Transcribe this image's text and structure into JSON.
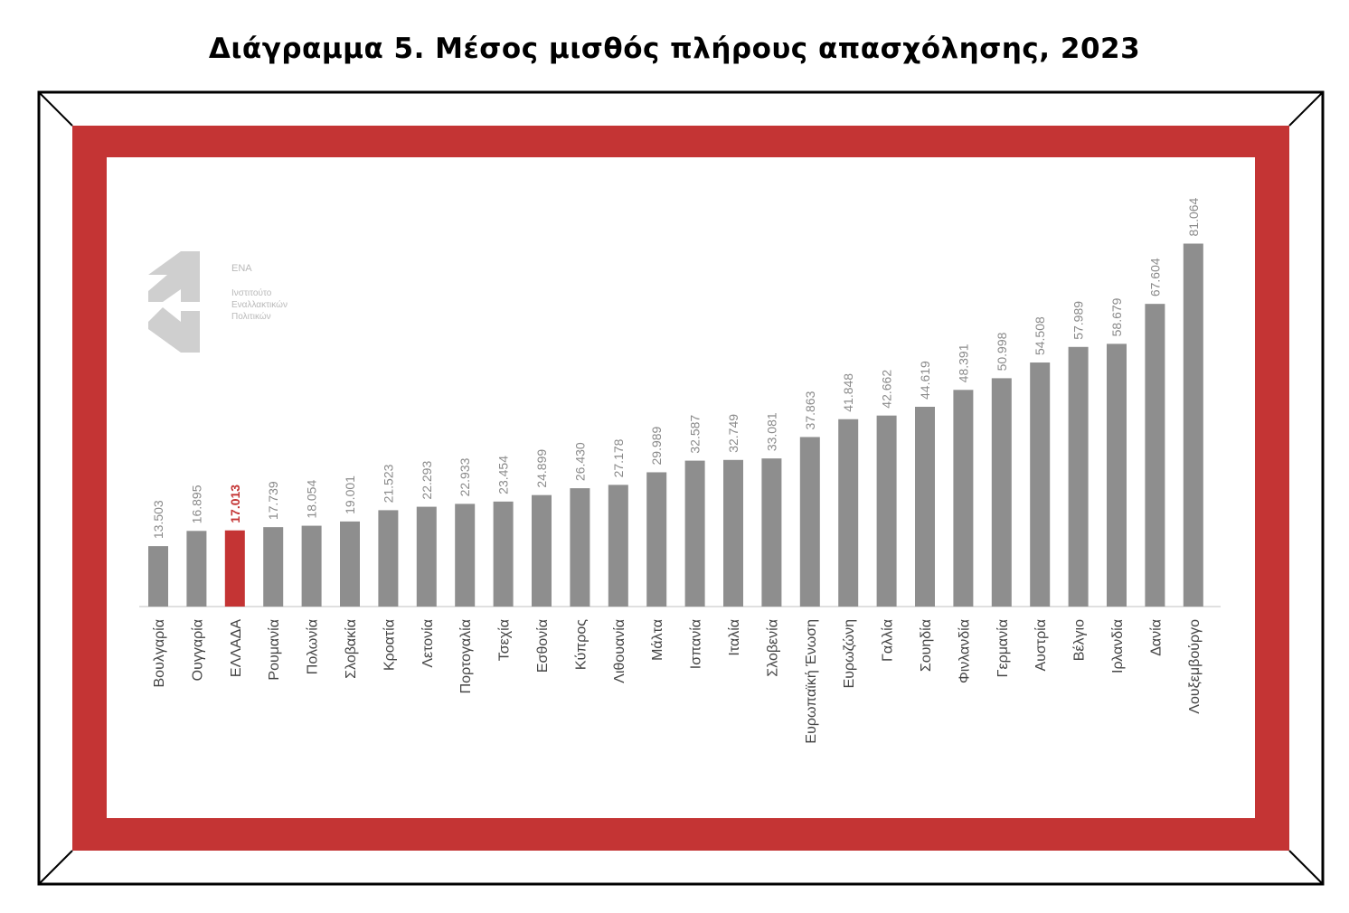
{
  "title": "Διάγραμμα 5. Μέσος μισθός πλήρους απασχόλησης, 2023",
  "logo": {
    "name": "ΕΝΑ",
    "line1": "Ινστιτούτο",
    "line2": "Εναλλακτικών",
    "line3": "Πολιτικών"
  },
  "colors": {
    "frame_red": "#c43434",
    "bar_gray": "#8e8e8e",
    "highlight_red": "#c43434",
    "label_gray": "#8a8a8a",
    "category_text": "#444444"
  },
  "chart_data": {
    "type": "bar",
    "categories": [
      "Βουλγαρία",
      "Ουγγαρία",
      "ΕΛΛΑΔΑ",
      "Ρουμανία",
      "Πολωνία",
      "Σλοβακία",
      "Κροατία",
      "Λετονία",
      "Πορτογαλία",
      "Τσεχία",
      "Εσθονία",
      "Κύπρος",
      "Λιθουανία",
      "Μάλτα",
      "Ισπανία",
      "Ιταλία",
      "Σλοβενία",
      "Ευρωπαϊκή Ένωση",
      "Ευρωζώνη",
      "Γαλλία",
      "Σουηδία",
      "Φινλανδία",
      "Γερμανία",
      "Αυστρία",
      "Βέλγιο",
      "Ιρλανδία",
      "Δανία",
      "Λουξεμβούργο"
    ],
    "values": [
      13503,
      16895,
      17013,
      17739,
      18054,
      19001,
      21523,
      22293,
      22933,
      23454,
      24899,
      26430,
      27178,
      29989,
      32587,
      32749,
      33081,
      37863,
      41848,
      42662,
      44619,
      48391,
      50998,
      54508,
      57989,
      58679,
      67604,
      81064
    ],
    "value_labels": [
      "13.503",
      "16.895",
      "17.013",
      "17.739",
      "18.054",
      "19.001",
      "21.523",
      "22.293",
      "22.933",
      "23.454",
      "24.899",
      "26.430",
      "27.178",
      "29.989",
      "32.587",
      "32.749",
      "33.081",
      "37.863",
      "41.848",
      "42.662",
      "44.619",
      "48.391",
      "50.998",
      "54.508",
      "57.989",
      "58.679",
      "67.604",
      "81.064"
    ],
    "highlight_index": 2,
    "ylim": [
      0,
      85000
    ],
    "grid": false,
    "legend": "none"
  }
}
